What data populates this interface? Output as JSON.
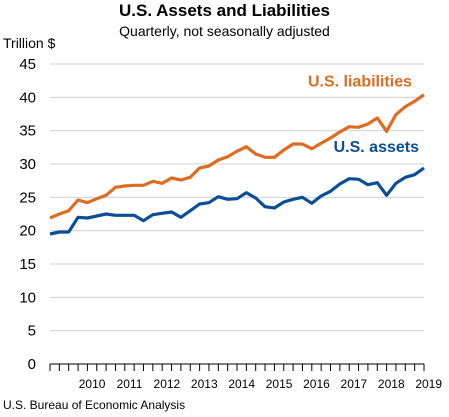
{
  "chart_data": {
    "type": "line",
    "title": "U.S. Assets and Liabilities",
    "subtitle": "Quarterly, not seasonally adjusted",
    "ylabel": "Trillion $",
    "source": "U.S. Bureau of Economic Analysis",
    "ylim": [
      0,
      45
    ],
    "yticks": [
      0,
      5,
      10,
      15,
      20,
      25,
      30,
      35,
      40,
      45
    ],
    "x_start_year": 2009,
    "year_labels": [
      "2010",
      "2011",
      "2012",
      "2013",
      "2014",
      "2015",
      "2016",
      "2017",
      "2018",
      "2019"
    ],
    "grid": "horizontal",
    "series": [
      {
        "name": "U.S. liabilities",
        "color": "#DE6B20",
        "values": [
          21.9,
          22.5,
          23.0,
          24.6,
          24.2,
          24.8,
          25.3,
          26.5,
          26.7,
          26.8,
          26.8,
          27.4,
          27.1,
          27.9,
          27.6,
          28.0,
          29.4,
          29.7,
          30.6,
          31.1,
          31.9,
          32.6,
          31.5,
          31.0,
          31.0,
          32.1,
          33.0,
          33.0,
          32.3,
          33.1,
          33.9,
          34.8,
          35.6,
          35.5,
          36.0,
          36.9,
          34.9,
          37.4,
          38.6,
          39.4,
          40.4
        ]
      },
      {
        "name": "U.S. assets",
        "color": "#0B4E98",
        "values": [
          19.5,
          19.8,
          19.8,
          22.0,
          21.9,
          22.2,
          22.5,
          22.3,
          22.3,
          22.3,
          21.5,
          22.4,
          22.6,
          22.8,
          22.0,
          23.0,
          24.0,
          24.2,
          25.1,
          24.7,
          24.8,
          25.7,
          24.9,
          23.6,
          23.4,
          24.3,
          24.7,
          25.0,
          24.1,
          25.2,
          25.9,
          27.0,
          27.8,
          27.7,
          26.9,
          27.2,
          25.3,
          27.1,
          28.0,
          28.4,
          29.4
        ]
      }
    ]
  }
}
